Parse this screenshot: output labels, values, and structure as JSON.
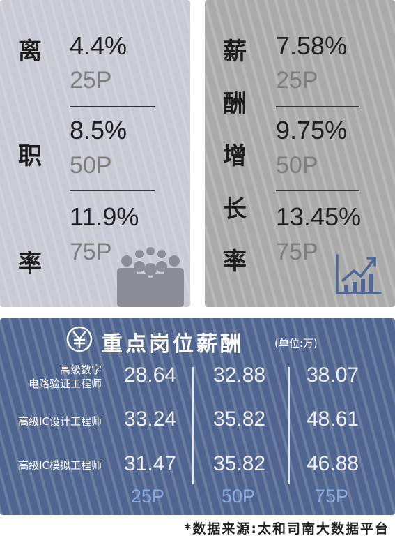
{
  "turnover": {
    "title_chars": [
      "离",
      "职",
      "率"
    ],
    "items": [
      {
        "value": "4.4%",
        "percentile": "25P"
      },
      {
        "value": "8.5%",
        "percentile": "50P"
      },
      {
        "value": "11.9%",
        "percentile": "75P"
      }
    ],
    "icon": "people-group-icon"
  },
  "salary_growth": {
    "title_chars": [
      "薪",
      "酬",
      "增",
      "长",
      "率"
    ],
    "items": [
      {
        "value": "7.58%",
        "percentile": "25P"
      },
      {
        "value": "9.75%",
        "percentile": "50P"
      },
      {
        "value": "13.45%",
        "percentile": "75P"
      }
    ],
    "icon": "rising-bar-chart-icon"
  },
  "key_positions": {
    "icon": "yen-coin-icon",
    "title": "重点岗位薪酬",
    "unit": "(单位:万)",
    "rows": [
      {
        "label_lines": [
          "高级数字",
          "电路验证工程师"
        ],
        "values": [
          "28.64",
          "32.88",
          "38.07"
        ]
      },
      {
        "label_lines": [
          "高级IC设计工程师"
        ],
        "values": [
          "33.24",
          "35.82",
          "48.61"
        ]
      },
      {
        "label_lines": [
          "高级IC模拟工程师"
        ],
        "values": [
          "31.47",
          "35.82",
          "46.88"
        ]
      }
    ],
    "columns": [
      "25P",
      "50P",
      "75P"
    ]
  },
  "footnote": "*数据来源:太和司南大数据平台",
  "colors": {
    "left_card": "#c9cad3",
    "right_card": "#aaaaaa",
    "bottom_card": "#4f648e",
    "percentile_text": "#8aaee0"
  }
}
